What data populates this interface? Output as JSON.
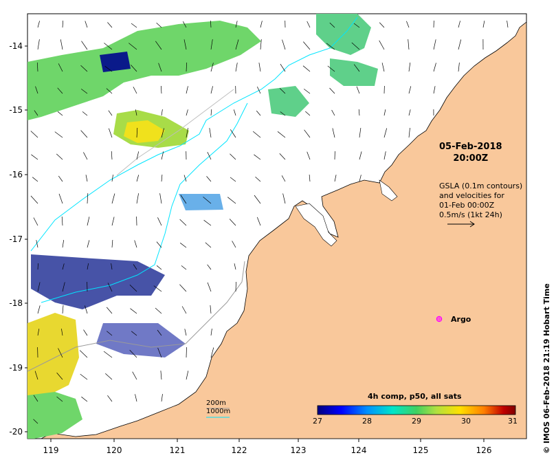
{
  "map": {
    "date_line1": "05-Feb-2018",
    "date_line2": "20:00Z",
    "legend_lines": [
      "GSLA (0.1m contours)",
      "and velocities for",
      "01-Feb 00:00Z",
      "0.5m/s (1kt 24h)"
    ],
    "argo_label": "Argo",
    "depth_labels": [
      "200m",
      "1000m"
    ],
    "colorbar_title": "4h comp, p50, all sats",
    "colorbar_ticks": [
      "27",
      "28",
      "29",
      "30",
      "31"
    ],
    "side_note": "© IMOS 06-Feb-2018 21:19 Hobart Time",
    "lat_labels": [
      "-14",
      "-15",
      "-16",
      "-17",
      "-18",
      "-19",
      "-20"
    ],
    "lon_labels": [
      "119",
      "120",
      "121",
      "122",
      "123",
      "124",
      "125",
      "126"
    ],
    "colors": {
      "land": "#f9c89b",
      "contour_200": "#7f7f7f",
      "contour_1000": "#00e5ff",
      "argo": "#ff00ff"
    },
    "colorbar_stops": [
      "#00007f",
      "#0000ff",
      "#0090ff",
      "#00e5c8",
      "#40d060",
      "#b0e040",
      "#ffe000",
      "#ff8000",
      "#c00000",
      "#800000"
    ]
  }
}
